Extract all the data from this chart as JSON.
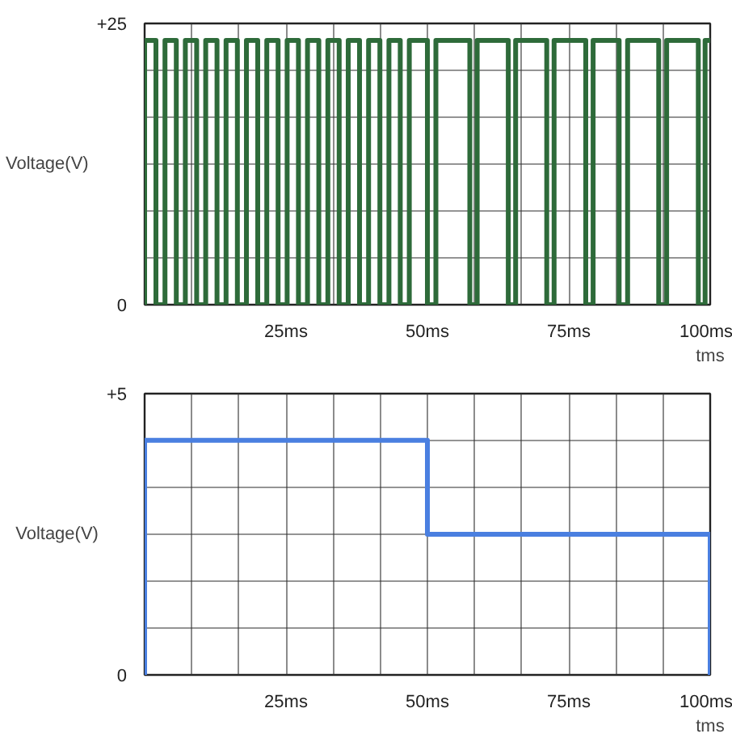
{
  "chart_data": [
    {
      "type": "step",
      "xlabel": "tms",
      "ylabel": "Voltage(V)",
      "grid": true,
      "xlim": [
        0,
        100
      ],
      "ylim": [
        0,
        25
      ],
      "xticks": [
        {
          "value": 0,
          "label": null
        },
        {
          "value": 8.33,
          "label": null
        },
        {
          "value": 16.67,
          "label": null
        },
        {
          "value": 25,
          "label": "25ms"
        },
        {
          "value": 33.33,
          "label": null
        },
        {
          "value": 41.67,
          "label": null
        },
        {
          "value": 50,
          "label": "50ms"
        },
        {
          "value": 58.33,
          "label": null
        },
        {
          "value": 66.67,
          "label": null
        },
        {
          "value": 75,
          "label": "75ms"
        },
        {
          "value": 83.33,
          "label": null
        },
        {
          "value": 91.67,
          "label": null
        },
        {
          "value": 100,
          "label": "100ms"
        }
      ],
      "yticks": [
        0,
        {
          "value": 4.17,
          "label": null
        },
        {
          "value": 8.33,
          "label": null
        },
        {
          "value": 12.5,
          "label": null
        },
        {
          "value": 16.67,
          "label": null
        },
        {
          "value": 20.83,
          "label": null
        },
        {
          "value": 25,
          "label": "+25"
        }
      ],
      "series": [
        {
          "color": "#2e6b3a",
          "x": [
            0,
            0,
            2.0,
            3.6,
            5.6,
            7.2,
            9.2,
            10.8,
            12.8,
            14.4,
            16.4,
            18.0,
            20.0,
            21.6,
            23.6,
            25.2,
            27.2,
            28.8,
            30.8,
            32.4,
            34.4,
            36.0,
            38.0,
            39.6,
            41.6,
            43.2,
            45.2,
            46.8,
            50.0,
            51.5,
            57.5,
            58.8,
            64.3,
            65.6,
            71.1,
            72.4,
            78.0,
            79.3,
            83.9,
            85.4,
            90.9,
            92.3,
            97.9,
            99.1,
            100
          ],
          "values": [
            0,
            23.5,
            0,
            23.5,
            0,
            23.5,
            0,
            23.5,
            0,
            23.5,
            0,
            23.5,
            0,
            23.5,
            0,
            23.5,
            0,
            23.5,
            0,
            23.5,
            0,
            23.5,
            0,
            23.5,
            0,
            23.5,
            0,
            23.5,
            0,
            23.5,
            0,
            23.5,
            0,
            23.5,
            0,
            23.5,
            0,
            23.5,
            0,
            23.5,
            0,
            23.5,
            0,
            23.5,
            23.5
          ]
        }
      ]
    },
    {
      "type": "step",
      "xlabel": "tms",
      "ylabel": "Voltage(V)",
      "grid": true,
      "xlim": [
        0,
        100
      ],
      "ylim": [
        0,
        5
      ],
      "xticks": [
        {
          "value": 0,
          "label": null
        },
        {
          "value": 8.33,
          "label": null
        },
        {
          "value": 16.67,
          "label": null
        },
        {
          "value": 25,
          "label": "25ms"
        },
        {
          "value": 33.33,
          "label": null
        },
        {
          "value": 41.67,
          "label": null
        },
        {
          "value": 50,
          "label": "50ms"
        },
        {
          "value": 58.33,
          "label": null
        },
        {
          "value": 66.67,
          "label": null
        },
        {
          "value": 75,
          "label": "75ms"
        },
        {
          "value": 83.33,
          "label": null
        },
        {
          "value": 91.67,
          "label": null
        },
        {
          "value": 100,
          "label": "100ms"
        }
      ],
      "yticks": [
        0,
        {
          "value": 0.83,
          "label": null
        },
        {
          "value": 1.67,
          "label": null
        },
        {
          "value": 2.5,
          "label": null
        },
        {
          "value": 3.33,
          "label": null
        },
        {
          "value": 4.17,
          "label": null
        },
        {
          "value": 5,
          "label": "+5"
        }
      ],
      "series": [
        {
          "color": "#4a7fe0",
          "x": [
            0,
            0,
            50,
            100,
            100
          ],
          "values": [
            0,
            4.17,
            2.5,
            2.5,
            0
          ]
        }
      ]
    }
  ]
}
